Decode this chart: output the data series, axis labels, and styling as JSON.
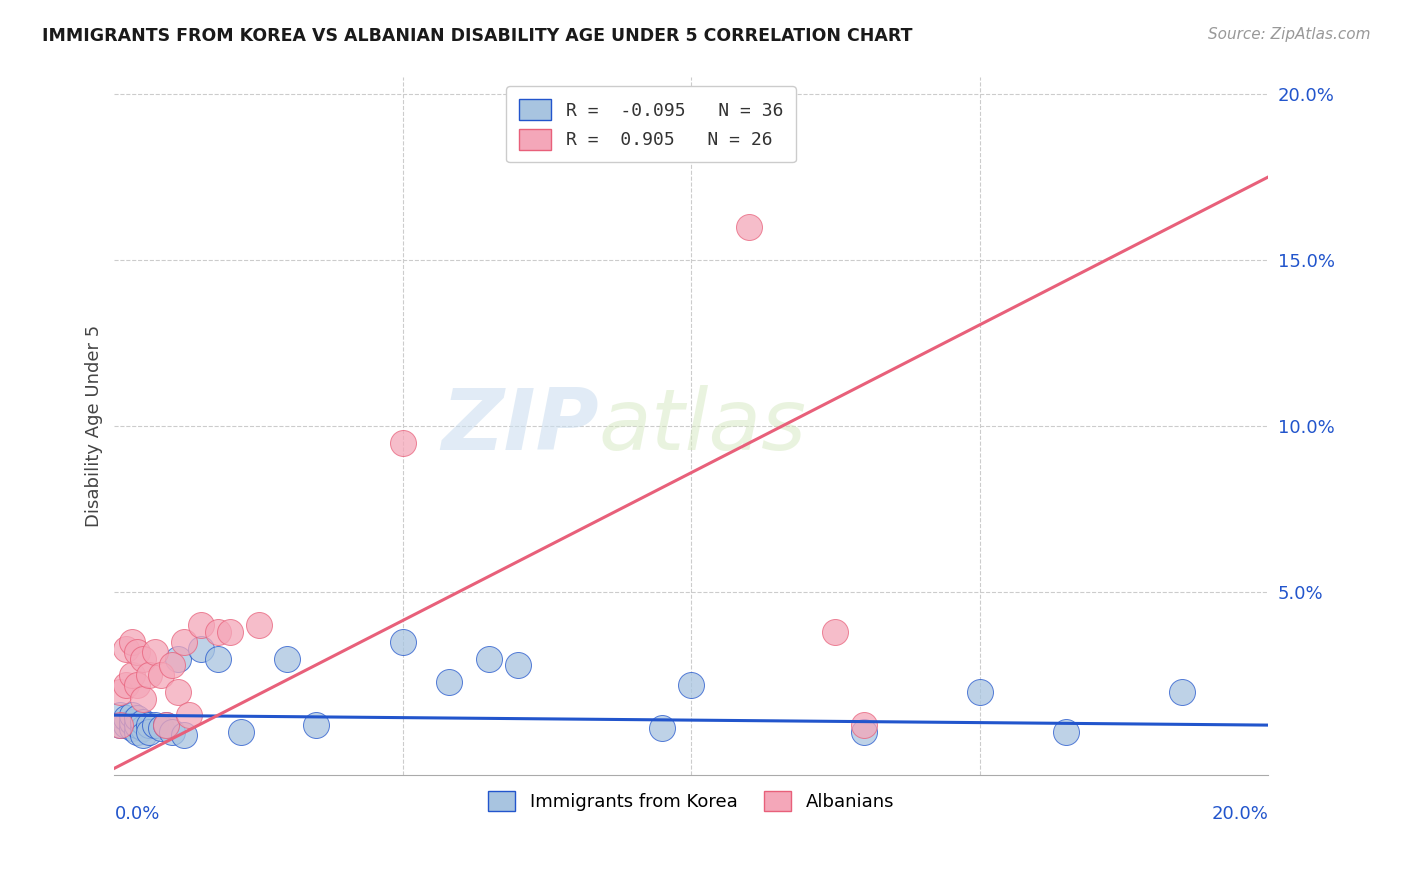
{
  "title": "IMMIGRANTS FROM KOREA VS ALBANIAN DISABILITY AGE UNDER 5 CORRELATION CHART",
  "source": "Source: ZipAtlas.com",
  "ylabel": "Disability Age Under 5",
  "xlim": [
    0.0,
    0.2
  ],
  "ylim": [
    -0.005,
    0.205
  ],
  "yticks": [
    0.0,
    0.05,
    0.1,
    0.15,
    0.2
  ],
  "ytick_labels": [
    "",
    "5.0%",
    "10.0%",
    "15.0%",
    "20.0%"
  ],
  "korea_R": -0.095,
  "korea_N": 36,
  "albanian_R": 0.905,
  "albanian_N": 26,
  "korea_color": "#a8c4e0",
  "albanian_color": "#f4a7b9",
  "korea_line_color": "#2255cc",
  "albanian_line_color": "#e8607a",
  "watermark_zip": "ZIP",
  "watermark_atlas": "atlas",
  "korea_x": [
    0.001,
    0.001,
    0.002,
    0.002,
    0.003,
    0.003,
    0.003,
    0.004,
    0.004,
    0.004,
    0.005,
    0.005,
    0.005,
    0.006,
    0.006,
    0.007,
    0.008,
    0.009,
    0.01,
    0.011,
    0.012,
    0.015,
    0.018,
    0.022,
    0.03,
    0.035,
    0.05,
    0.058,
    0.065,
    0.07,
    0.095,
    0.1,
    0.13,
    0.15,
    0.165,
    0.185
  ],
  "korea_y": [
    0.01,
    0.013,
    0.01,
    0.012,
    0.009,
    0.011,
    0.013,
    0.008,
    0.01,
    0.012,
    0.009,
    0.011,
    0.007,
    0.01,
    0.008,
    0.01,
    0.009,
    0.01,
    0.008,
    0.03,
    0.007,
    0.033,
    0.03,
    0.008,
    0.03,
    0.01,
    0.035,
    0.023,
    0.03,
    0.028,
    0.009,
    0.022,
    0.008,
    0.02,
    0.008,
    0.02
  ],
  "albanian_x": [
    0.001,
    0.001,
    0.002,
    0.002,
    0.003,
    0.003,
    0.004,
    0.004,
    0.005,
    0.005,
    0.006,
    0.007,
    0.008,
    0.009,
    0.01,
    0.011,
    0.012,
    0.013,
    0.015,
    0.018,
    0.02,
    0.025,
    0.05,
    0.11,
    0.125,
    0.13
  ],
  "albanian_y": [
    0.01,
    0.02,
    0.022,
    0.033,
    0.025,
    0.035,
    0.022,
    0.032,
    0.018,
    0.03,
    0.025,
    0.032,
    0.025,
    0.01,
    0.028,
    0.02,
    0.035,
    0.013,
    0.04,
    0.038,
    0.038,
    0.04,
    0.095,
    0.16,
    0.038,
    0.01
  ],
  "korea_line_x": [
    0.0,
    0.2
  ],
  "korea_line_y": [
    0.013,
    0.01
  ],
  "albanian_line_x": [
    0.0,
    0.2
  ],
  "albanian_line_y": [
    -0.003,
    0.175
  ]
}
